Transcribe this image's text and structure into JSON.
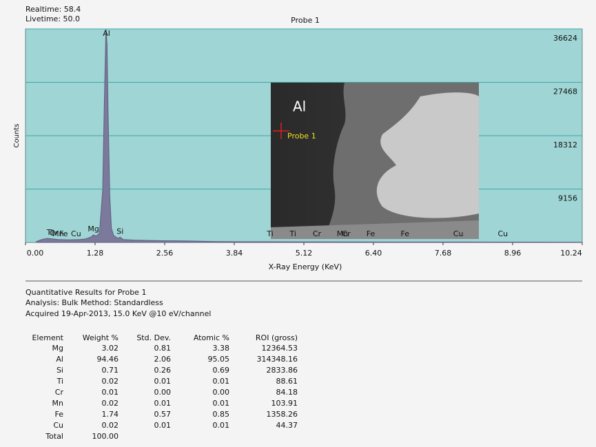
{
  "header": {
    "realtime": "Realtime: 58.4",
    "livetime": "Livetime: 50.0"
  },
  "chart_data": {
    "type": "area",
    "title": "Probe 1",
    "x_label": "X-Ray Energy (KeV)",
    "y_label": "Counts",
    "color": "#7c7a9c",
    "background": "#9fd5d4",
    "grid": true,
    "xlim": [
      0,
      10.24
    ],
    "xticks": [
      {
        "value": 0,
        "label": "0.00"
      },
      1.28,
      2.56,
      3.84,
      5.12,
      {
        "value": 6.4,
        "label": "6.40"
      },
      7.68,
      8.96,
      10.24
    ],
    "ylim": [
      0,
      36624
    ],
    "yticks": [
      9156,
      18312,
      27468,
      36624
    ],
    "x": [
      0.2,
      0.3,
      0.4,
      0.5,
      0.6,
      0.8,
      1.0,
      1.1,
      1.2,
      1.25,
      1.3,
      1.36,
      1.42,
      1.45,
      1.48,
      1.5,
      1.52,
      1.55,
      1.58,
      1.62,
      1.7,
      1.74,
      1.8,
      2.0,
      2.5,
      3.0,
      3.5,
      4.0,
      5.0,
      6.0,
      7.0,
      8.0,
      9.0,
      10.24
    ],
    "values": [
      150,
      500,
      700,
      600,
      500,
      450,
      500,
      600,
      900,
      1300,
      1100,
      1600,
      9000,
      24000,
      36624,
      34000,
      22000,
      8000,
      2500,
      1200,
      700,
      900,
      500,
      400,
      300,
      250,
      150,
      120,
      100,
      90,
      80,
      70,
      60,
      50
    ],
    "peak_labels": [
      {
        "label": "Ti",
        "x": 0.45
      },
      {
        "label": "Cr",
        "x": 0.52
      },
      {
        "label": "Mn",
        "x": 0.6
      },
      {
        "label": "Fe",
        "x": 0.7
      },
      {
        "label": "Cu",
        "x": 0.93
      },
      {
        "label": "Mg",
        "x": 1.25
      },
      {
        "label": "Al",
        "x": 1.49
      },
      {
        "label": "Si",
        "x": 1.74
      },
      {
        "label": "Ti",
        "x": 4.5
      },
      {
        "label": "Ti",
        "x": 4.92
      },
      {
        "label": "Cr",
        "x": 5.36
      },
      {
        "label": "Cr",
        "x": 5.9
      },
      {
        "label": "Mn",
        "x": 5.83
      },
      {
        "label": "Fe",
        "x": 6.35
      },
      {
        "label": "Fe",
        "x": 6.98
      },
      {
        "label": "Cu",
        "x": 7.96
      },
      {
        "label": "Cu",
        "x": 8.78
      }
    ]
  },
  "image": {
    "label": "Al",
    "probe": "Probe 1"
  },
  "results": {
    "title": "Quantitative Results for  Probe 1",
    "analysis": "Analysis: Bulk    Method: Standardless",
    "acquired": "Acquired 19-Apr-2013, 15.0 KeV @10 eV/channel"
  },
  "table": {
    "columns": [
      "Element",
      "Weight %",
      "Std. Dev.",
      "Atomic %",
      "ROI (gross)"
    ],
    "rows": [
      [
        "Mg",
        "3.02",
        "0.81",
        "3.38",
        "12364.53"
      ],
      [
        "Al",
        "94.46",
        "2.06",
        "95.05",
        "314348.16"
      ],
      [
        "Si",
        "0.71",
        "0.26",
        "0.69",
        "2833.86"
      ],
      [
        "Ti",
        "0.02",
        "0.01",
        "0.01",
        "88.61"
      ],
      [
        "Cr",
        "0.01",
        "0.00",
        "0.00",
        "84.18"
      ],
      [
        "Mn",
        "0.02",
        "0.01",
        "0.01",
        "103.91"
      ],
      [
        "Fe",
        "1.74",
        "0.57",
        "0.85",
        "1358.26"
      ],
      [
        "Cu",
        "0.02",
        "0.01",
        "0.01",
        "44.37"
      ],
      [
        "Total",
        "100.00"
      ]
    ]
  }
}
